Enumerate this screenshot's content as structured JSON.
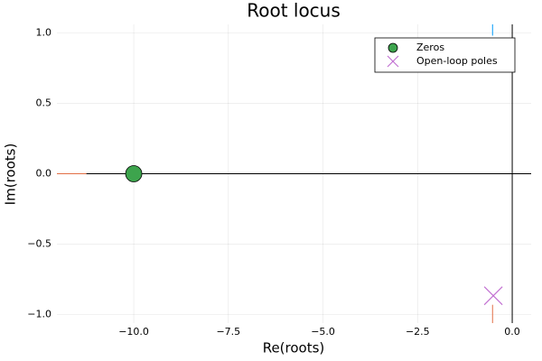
{
  "chart_data": {
    "type": "scatter",
    "title": "Root locus",
    "x_label": "Re(roots)",
    "y_label": "Im(roots)",
    "xlim": [
      -12.03,
      0.5
    ],
    "ylim": [
      -1.06,
      1.06
    ],
    "xticks": [
      {
        "value": -10,
        "label": "−10.0"
      },
      {
        "value": -7.5,
        "label": "−7.5"
      },
      {
        "value": -5,
        "label": "−5.0"
      },
      {
        "value": -2.5,
        "label": "−2.5"
      },
      {
        "value": 0,
        "label": "0.0"
      }
    ],
    "yticks": [
      {
        "value": -1,
        "label": "−1.0"
      },
      {
        "value": -0.5,
        "label": "−0.5"
      },
      {
        "value": 0,
        "label": "0.0"
      },
      {
        "value": 0.5,
        "label": "0.5"
      },
      {
        "value": 1,
        "label": "1.0"
      }
    ],
    "grid": true,
    "zero_lines": true,
    "legend_position": "top-right",
    "lines": [
      {
        "color": "#e26f46",
        "x": [
          -12.1,
          -11.25
        ],
        "y": [
          0,
          0
        ]
      },
      {
        "color": "#e26f46",
        "x": [
          -0.52,
          -0.52
        ],
        "y": [
          -0.93,
          -1.1
        ]
      },
      {
        "color": "#009af9",
        "x": [
          -0.52,
          -0.52
        ],
        "y": [
          0.98,
          1.1
        ]
      }
    ],
    "series": [
      {
        "name": "Zeros",
        "color": "#3da44d",
        "marker": "circle",
        "x": [
          -10
        ],
        "y": [
          0
        ]
      },
      {
        "name": "Open-loop poles",
        "color": "#c271d2",
        "marker": "x",
        "x": [
          -0.5
        ],
        "y": [
          -0.866
        ]
      }
    ]
  }
}
